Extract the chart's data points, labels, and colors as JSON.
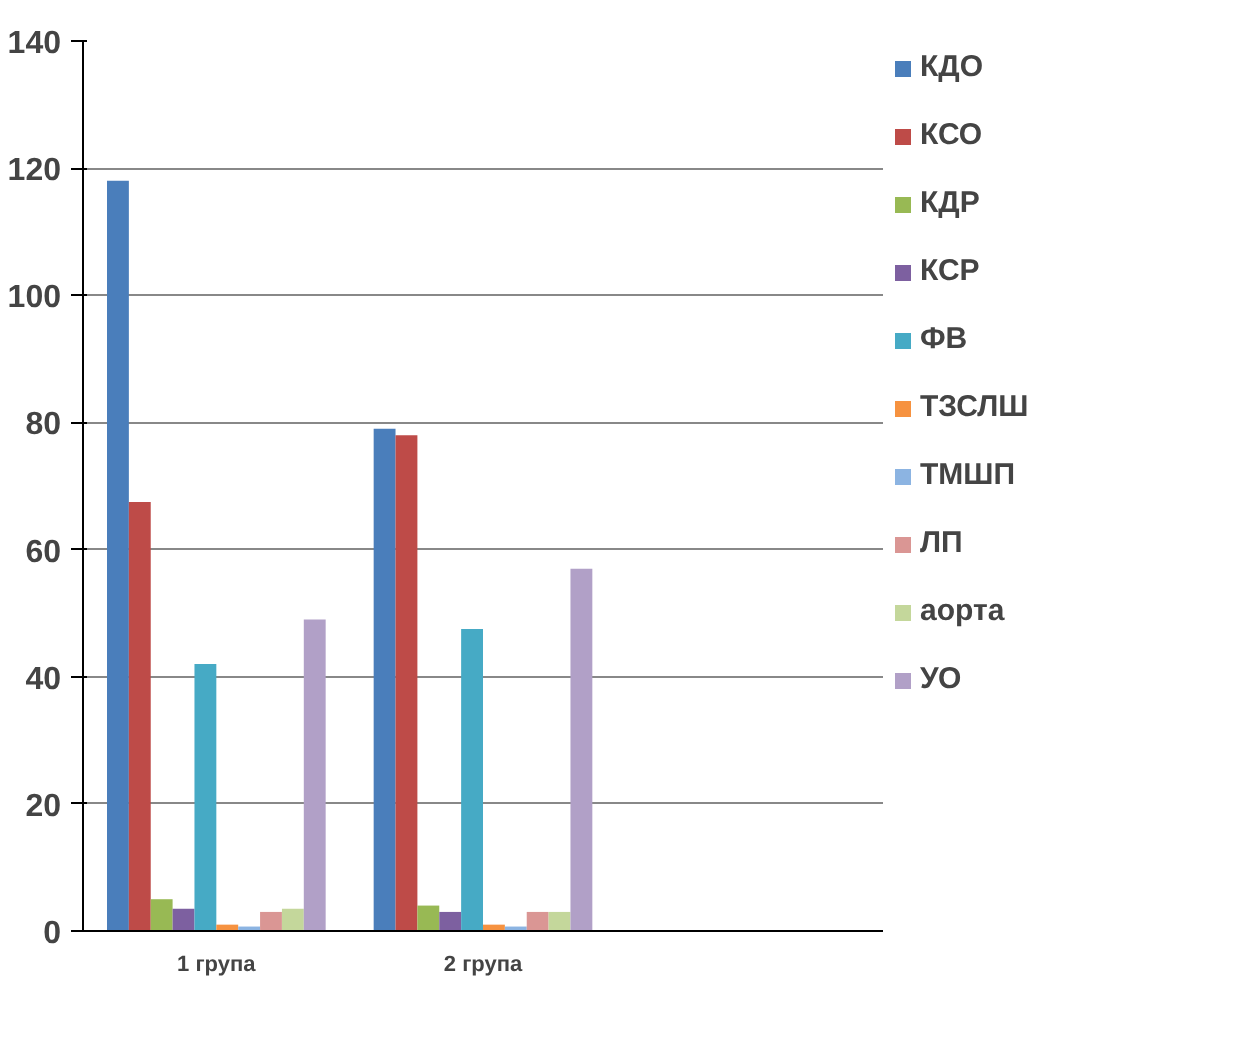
{
  "chart_data": {
    "type": "bar",
    "categories": [
      "1 група",
      "2 група",
      null
    ],
    "ylim": [
      0,
      140
    ],
    "yticks": [
      0,
      20,
      40,
      60,
      80,
      100,
      120,
      140
    ],
    "grid": "y",
    "legend": "right",
    "series": [
      {
        "name": "КДО",
        "color": "#4a7ebb",
        "values": [
          118,
          79,
          null
        ]
      },
      {
        "name": "КСО",
        "color": "#be4b48",
        "values": [
          67.5,
          78,
          null
        ]
      },
      {
        "name": "КДР",
        "color": "#98b954",
        "values": [
          5,
          4,
          null
        ]
      },
      {
        "name": "КСР",
        "color": "#7d60a0",
        "values": [
          3.5,
          3,
          null
        ]
      },
      {
        "name": "ФВ",
        "color": "#46aac5",
        "values": [
          42,
          47.5,
          null
        ]
      },
      {
        "name": "ТЗСЛШ",
        "color": "#f69240",
        "values": [
          1,
          1,
          null
        ]
      },
      {
        "name": "ТМШП",
        "color": "#8cb4e2",
        "values": [
          0.7,
          0.7,
          null
        ]
      },
      {
        "name": "ЛП",
        "color": "#da9694",
        "values": [
          3,
          3,
          null
        ]
      },
      {
        "name": "аорта",
        "color": "#c4d79b",
        "values": [
          3.5,
          3,
          null
        ]
      },
      {
        "name": "УО",
        "color": "#b1a0c7",
        "values": [
          49,
          57,
          null
        ]
      }
    ]
  }
}
